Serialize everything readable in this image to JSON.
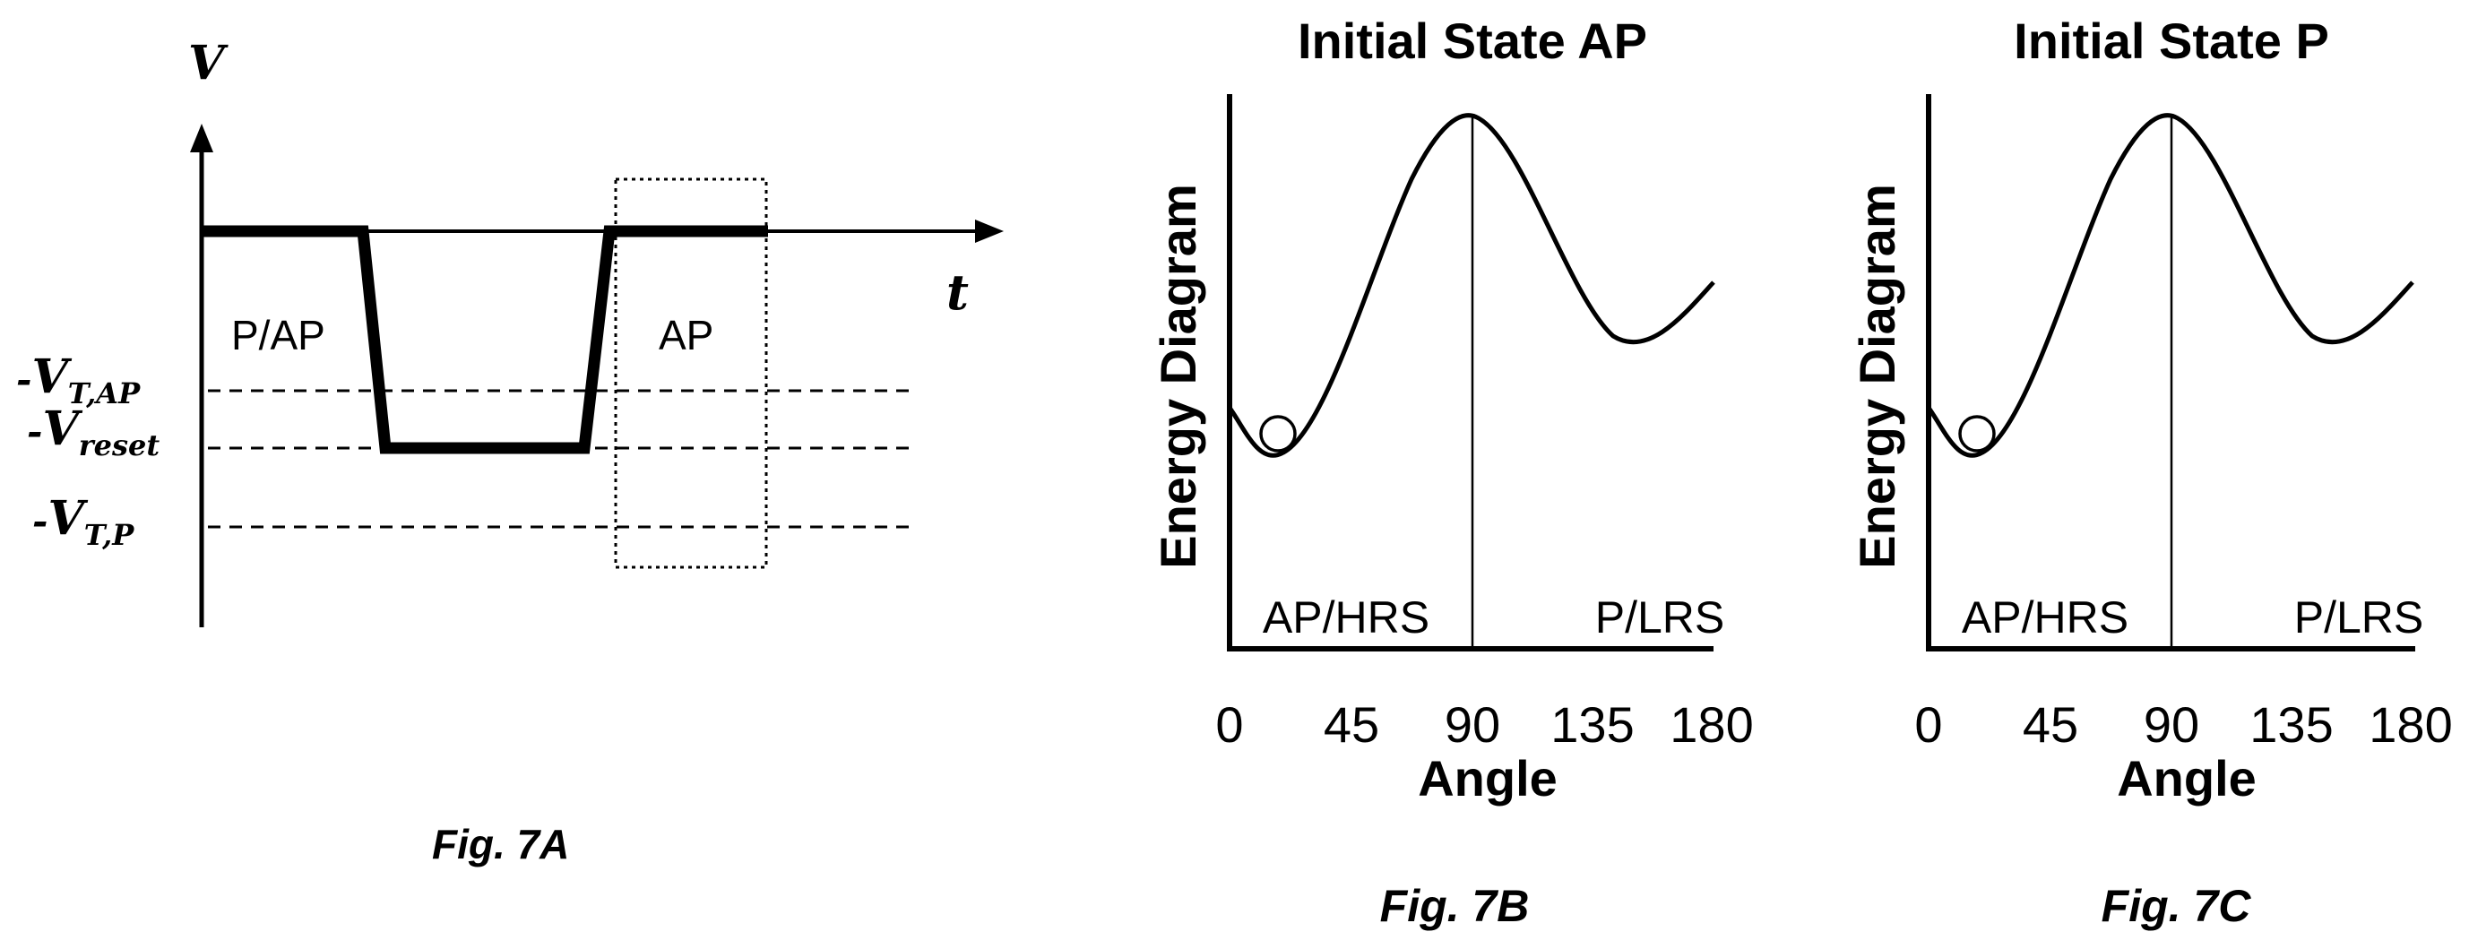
{
  "fig7a": {
    "v_label": "V",
    "t_label": "t",
    "region_left": "P/AP",
    "region_right": "AP",
    "levels": [
      {
        "minus": "-",
        "main": "V",
        "sub": "T,AP"
      },
      {
        "minus": "-",
        "main": "V",
        "sub": "reset"
      },
      {
        "minus": "-",
        "main": "V",
        "sub": "T,P"
      }
    ],
    "caption": "Fig. 7A"
  },
  "fig7b": {
    "title": "Initial State AP",
    "ylabel": "Energy Diagram",
    "xlabel": "Angle",
    "region_left": "AP/HRS",
    "region_right": "P/LRS",
    "xticks": [
      "0",
      "45",
      "90",
      "135",
      "180"
    ],
    "caption": "Fig. 7B"
  },
  "fig7c": {
    "title": "Initial State P",
    "ylabel": "Energy Diagram",
    "xlabel": "Angle",
    "region_left": "AP/HRS",
    "region_right": "P/LRS",
    "xticks": [
      "0",
      "45",
      "90",
      "135",
      "180"
    ],
    "caption": "Fig. 7C"
  }
}
